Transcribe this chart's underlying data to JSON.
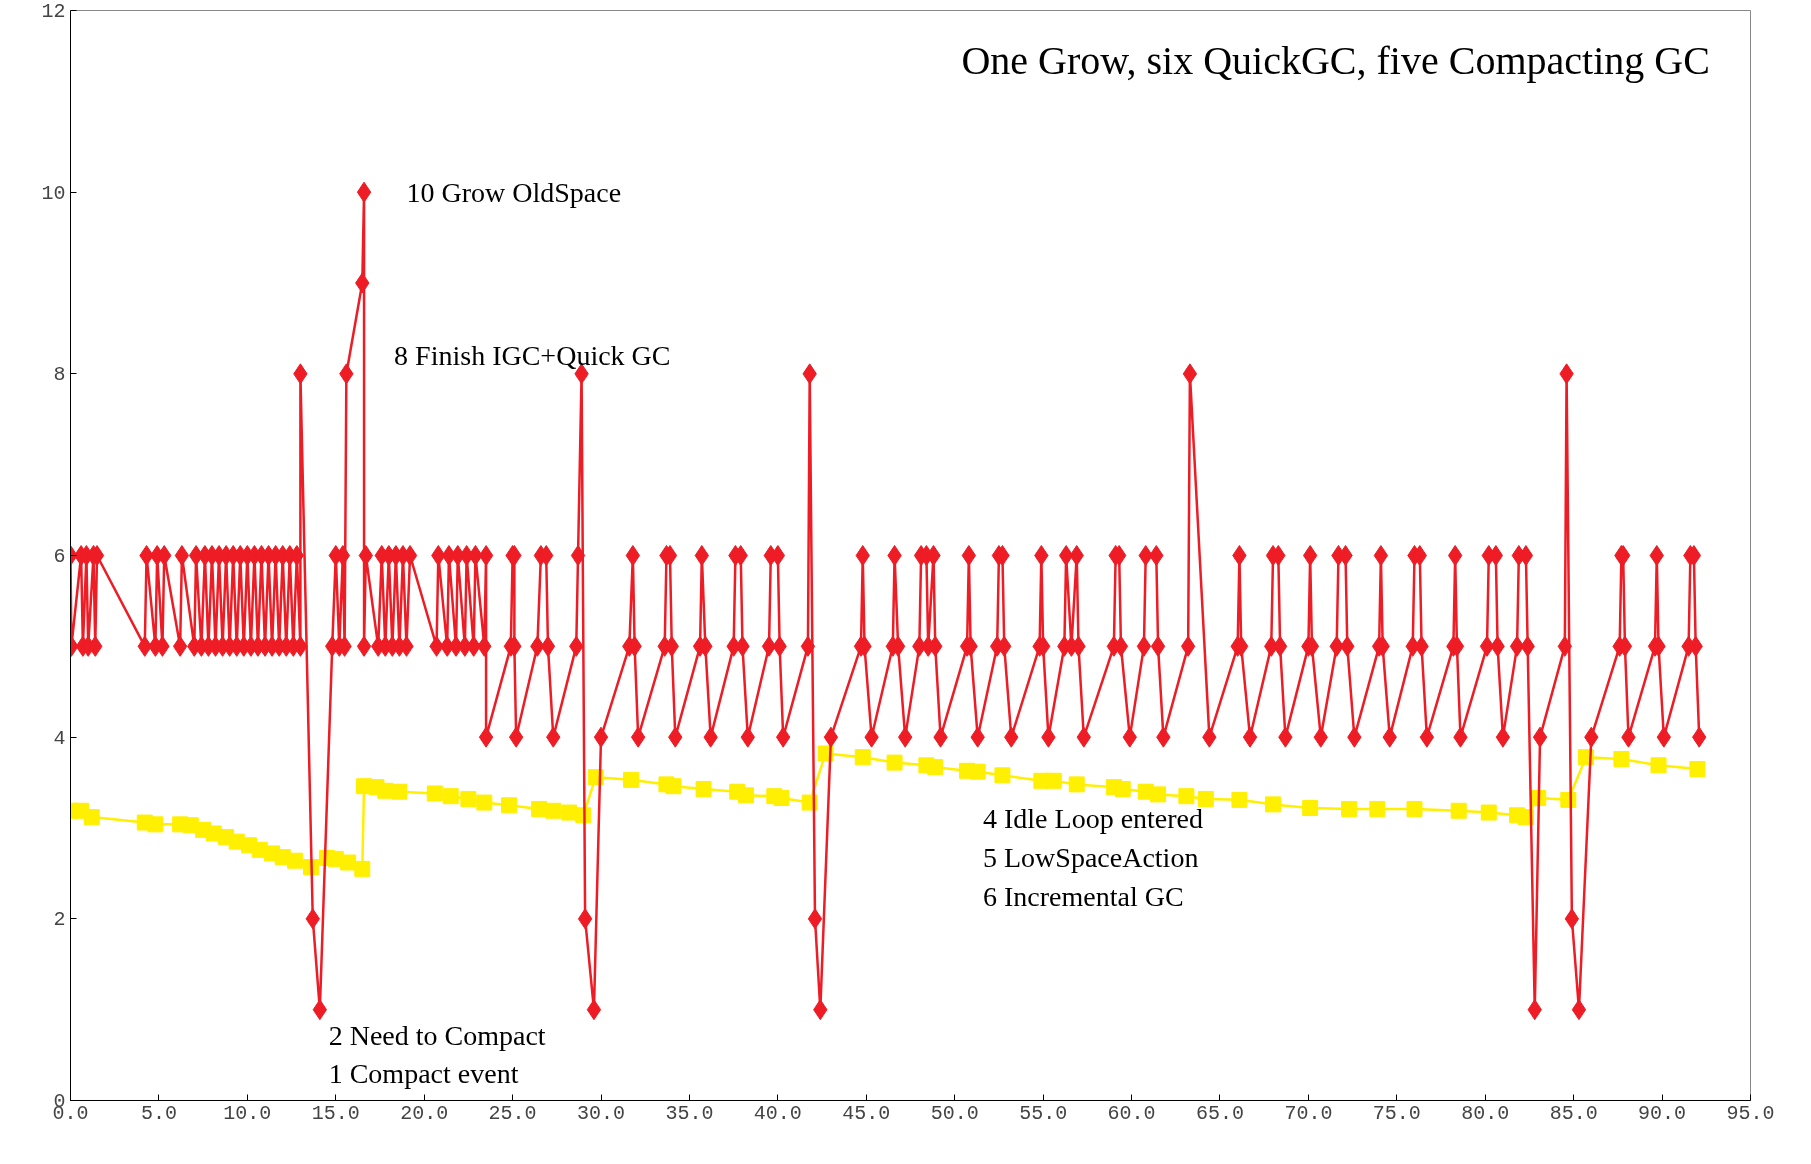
{
  "chart_data": {
    "type": "line",
    "title": "One Grow, six QuickGC, five Compacting GC",
    "xlim": [
      0,
      95
    ],
    "ylim": [
      0,
      12
    ],
    "xticks": [
      {
        "value": 0,
        "label": "0.0"
      },
      {
        "value": 5,
        "label": "5.0"
      },
      {
        "value": 10,
        "label": "10.0"
      },
      {
        "value": 15,
        "label": "15.0"
      },
      {
        "value": 20,
        "label": "20.0"
      },
      {
        "value": 25,
        "label": "25.0"
      },
      {
        "value": 30,
        "label": "30.0"
      },
      {
        "value": 35,
        "label": "35.0"
      },
      {
        "value": 40,
        "label": "40.0"
      },
      {
        "value": 45,
        "label": "45.0"
      },
      {
        "value": 50,
        "label": "50.0"
      },
      {
        "value": 55,
        "label": "55.0"
      },
      {
        "value": 60,
        "label": "60.0"
      },
      {
        "value": 65,
        "label": "65.0"
      },
      {
        "value": 70,
        "label": "70.0"
      },
      {
        "value": 75,
        "label": "75.0"
      },
      {
        "value": 80,
        "label": "80.0"
      },
      {
        "value": 85,
        "label": "85.0"
      },
      {
        "value": 90,
        "label": "90.0"
      },
      {
        "value": 95,
        "label": "95.0"
      }
    ],
    "yticks": [
      0,
      2,
      4,
      6,
      8,
      10,
      12
    ],
    "grid": false,
    "line_style": "solid",
    "series": [
      {
        "color": "#ffef00",
        "marker": "square",
        "x": [
          0.0,
          0.6,
          1.2,
          4.2,
          4.8,
          6.2,
          6.8,
          7.5,
          8.1,
          8.8,
          9.4,
          10.1,
          10.7,
          11.4,
          12.0,
          12.7,
          13.6,
          14.5,
          15.0,
          15.7,
          16.5,
          16.6,
          17.3,
          17.8,
          18.6,
          20.6,
          21.5,
          22.5,
          23.4,
          24.8,
          26.5,
          27.3,
          28.2,
          29.0,
          29.7,
          31.7,
          33.7,
          34.1,
          35.8,
          37.7,
          38.2,
          39.8,
          40.2,
          41.8,
          42.7,
          44.8,
          46.6,
          48.4,
          48.9,
          50.7,
          51.3,
          52.7,
          54.9,
          55.6,
          56.9,
          59.0,
          59.5,
          60.8,
          61.5,
          63.1,
          64.2,
          66.1,
          68.0,
          70.1,
          72.3,
          73.9,
          76.0,
          78.5,
          80.2,
          81.8,
          82.3,
          83.0,
          84.7,
          85.7,
          87.7,
          89.8,
          92.0
        ],
        "values": [
          3.19,
          3.19,
          3.12,
          3.06,
          3.04,
          3.04,
          3.03,
          2.98,
          2.94,
          2.9,
          2.85,
          2.81,
          2.76,
          2.72,
          2.68,
          2.64,
          2.57,
          2.67,
          2.66,
          2.62,
          2.55,
          3.46,
          3.45,
          3.41,
          3.4,
          3.38,
          3.35,
          3.32,
          3.28,
          3.25,
          3.21,
          3.19,
          3.17,
          3.14,
          3.56,
          3.53,
          3.48,
          3.46,
          3.43,
          3.4,
          3.36,
          3.35,
          3.33,
          3.28,
          3.82,
          3.78,
          3.72,
          3.69,
          3.67,
          3.63,
          3.62,
          3.58,
          3.52,
          3.52,
          3.48,
          3.45,
          3.43,
          3.4,
          3.37,
          3.35,
          3.32,
          3.31,
          3.26,
          3.22,
          3.21,
          3.21,
          3.21,
          3.19,
          3.17,
          3.14,
          3.12,
          3.33,
          3.31,
          3.78,
          3.76,
          3.69,
          3.65
        ]
      },
      {
        "color": "#ee1c25",
        "marker": "diamond",
        "x": [
          0.0,
          0.05,
          0.6,
          0.7,
          0.9,
          1.0,
          1.3,
          1.4,
          1.5,
          4.2,
          4.3,
          4.8,
          4.9,
          5.2,
          5.3,
          6.2,
          6.3,
          7.0,
          7.1,
          7.4,
          7.6,
          7.8,
          8.0,
          8.2,
          8.4,
          8.6,
          8.8,
          9.0,
          9.2,
          9.4,
          9.6,
          9.8,
          10.0,
          10.2,
          10.4,
          10.6,
          10.8,
          11.0,
          11.2,
          11.4,
          11.6,
          11.8,
          12.0,
          12.2,
          12.4,
          12.6,
          12.8,
          13.0,
          13.0,
          13.7,
          14.1,
          14.8,
          15.0,
          15.2,
          15.4,
          15.5,
          15.6,
          16.5,
          16.6,
          16.6,
          16.7,
          17.4,
          17.6,
          17.8,
          18.0,
          18.2,
          18.4,
          18.6,
          18.8,
          19.0,
          19.2,
          20.7,
          20.8,
          21.3,
          21.4,
          21.8,
          21.9,
          22.3,
          22.4,
          22.8,
          22.9,
          23.4,
          23.5,
          23.5,
          24.9,
          25.0,
          25.1,
          25.1,
          25.2,
          26.4,
          26.6,
          26.9,
          27.0,
          27.3,
          28.6,
          28.7,
          28.9,
          29.1,
          29.6,
          30.0,
          31.6,
          31.8,
          31.9,
          32.1,
          33.6,
          33.7,
          33.9,
          34.0,
          34.2,
          35.6,
          35.7,
          35.9,
          36.2,
          37.5,
          37.6,
          37.9,
          38.0,
          38.3,
          39.5,
          39.6,
          40.0,
          40.1,
          40.3,
          41.7,
          41.8,
          42.1,
          42.4,
          43.0,
          44.7,
          44.8,
          44.9,
          45.3,
          46.5,
          46.6,
          46.8,
          47.2,
          48.0,
          48.1,
          48.4,
          48.5,
          48.8,
          48.9,
          49.2,
          50.7,
          50.8,
          50.9,
          51.3,
          52.4,
          52.5,
          52.7,
          52.8,
          53.2,
          54.8,
          54.9,
          55.0,
          55.3,
          56.2,
          56.3,
          56.6,
          56.9,
          57.0,
          57.3,
          59.0,
          59.1,
          59.3,
          59.4,
          59.9,
          60.7,
          60.8,
          61.4,
          61.5,
          61.8,
          63.2,
          63.3,
          64.4,
          66.0,
          66.1,
          66.2,
          66.7,
          67.9,
          68.0,
          68.3,
          68.4,
          68.7,
          70.0,
          70.1,
          70.2,
          70.7,
          71.6,
          71.7,
          72.1,
          72.2,
          72.6,
          74.0,
          74.1,
          74.2,
          74.6,
          75.9,
          76.0,
          76.3,
          76.4,
          76.7,
          78.2,
          78.3,
          78.4,
          78.6,
          80.1,
          80.2,
          80.6,
          80.7,
          81.0,
          81.8,
          81.9,
          82.3,
          82.4,
          82.8,
          83.1,
          84.5,
          84.6,
          84.9,
          85.3,
          86.0,
          87.6,
          87.7,
          87.8,
          87.9,
          88.1,
          89.6,
          89.7,
          89.8,
          90.1,
          91.5,
          91.6,
          91.8,
          91.9,
          92.1
        ],
        "values": [
          6,
          5,
          6,
          5,
          6,
          5,
          6,
          5,
          6,
          5,
          6,
          5,
          6,
          5,
          6,
          5,
          6,
          5,
          6,
          5,
          6,
          5,
          6,
          5,
          6,
          5,
          6,
          5,
          6,
          5,
          6,
          5,
          6,
          5,
          6,
          5,
          6,
          5,
          6,
          5,
          6,
          5,
          6,
          5,
          6,
          5,
          6,
          5,
          8,
          2,
          1,
          5,
          6,
          5,
          6,
          5,
          8,
          9,
          10,
          5,
          6,
          5,
          6,
          5,
          6,
          5,
          6,
          5,
          6,
          5,
          6,
          5,
          6,
          5,
          6,
          5,
          6,
          5,
          6,
          5,
          6,
          5,
          6,
          4,
          5,
          6,
          6,
          5,
          4,
          5,
          6,
          6,
          5,
          4,
          5,
          6,
          8,
          2,
          1,
          4,
          5,
          6,
          5,
          4,
          5,
          6,
          6,
          5,
          4,
          5,
          6,
          5,
          4,
          5,
          6,
          6,
          5,
          4,
          5,
          6,
          6,
          5,
          4,
          5,
          8,
          2,
          1,
          4,
          5,
          6,
          5,
          4,
          5,
          6,
          5,
          4,
          5,
          6,
          6,
          5,
          6,
          5,
          4,
          5,
          6,
          5,
          4,
          5,
          6,
          6,
          5,
          4,
          5,
          6,
          5,
          4,
          5,
          6,
          5,
          6,
          5,
          4,
          5,
          6,
          6,
          5,
          4,
          5,
          6,
          6,
          5,
          4,
          5,
          8,
          4,
          5,
          6,
          5,
          4,
          5,
          6,
          6,
          5,
          4,
          5,
          6,
          5,
          4,
          5,
          6,
          6,
          5,
          4,
          5,
          6,
          5,
          4,
          5,
          6,
          6,
          5,
          4,
          5,
          6,
          5,
          4,
          5,
          6,
          6,
          5,
          4,
          5,
          6,
          6,
          5,
          1,
          4,
          5,
          8,
          2,
          1,
          4,
          5,
          6,
          6,
          5,
          4,
          5,
          6,
          5,
          4,
          5,
          6,
          6,
          5,
          4
        ]
      }
    ],
    "annotations": [
      "10 Grow OldSpace",
      "8 Finish IGC+Quick GC",
      "4 Idle Loop entered",
      "5 LowSpaceAction",
      "6 Incremental GC",
      "2 Need to Compact",
      "1 Compact event"
    ]
  }
}
